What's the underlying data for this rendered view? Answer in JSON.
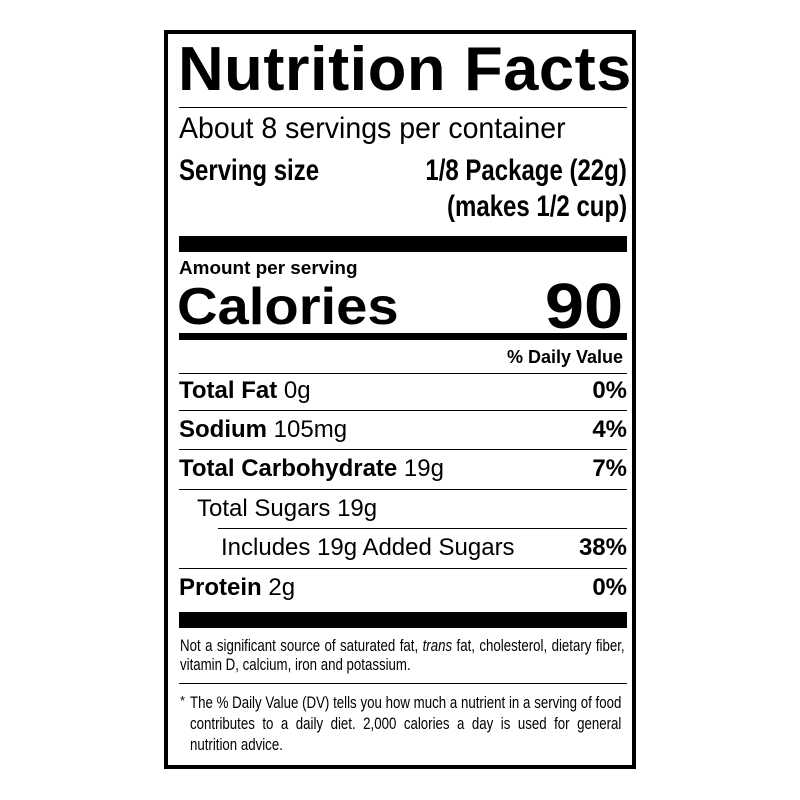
{
  "title": "Nutrition Facts",
  "servings_per_container": "About 8 servings per container",
  "serving_size": {
    "label": "Serving size",
    "value": "1/8 Package (22g)",
    "note": "(makes 1/2 cup)"
  },
  "amount_per_serving": "Amount per serving",
  "calories": {
    "label": "Calories",
    "value": "90"
  },
  "daily_value_header": "% Daily Value",
  "nutrients": [
    {
      "name": "Total Fat",
      "amount": "0g",
      "dv": "0%"
    },
    {
      "name": "Sodium",
      "amount": "105mg",
      "dv": "4%"
    },
    {
      "name": "Total Carbohydrate",
      "amount": "19g",
      "dv": "7%"
    },
    {
      "name": "Total Sugars 19g",
      "amount": "",
      "dv": ""
    },
    {
      "name": "Includes 19g Added Sugars",
      "amount": "",
      "dv": "38%"
    },
    {
      "name": "Protein",
      "amount": "2g",
      "dv": "0%"
    }
  ],
  "not_significant": {
    "before": "Not a significant source of saturated fat, ",
    "italic": "trans",
    "after": " fat, cholesterol, dietary fiber, vitamin D, calcium, iron and potassium."
  },
  "footnote": {
    "asterisk": "*",
    "text": "The % Daily Value (DV) tells you how much a nutrient in a serving of food contributes to a daily diet. 2,000 calories a day is used for general nutrition advice."
  }
}
